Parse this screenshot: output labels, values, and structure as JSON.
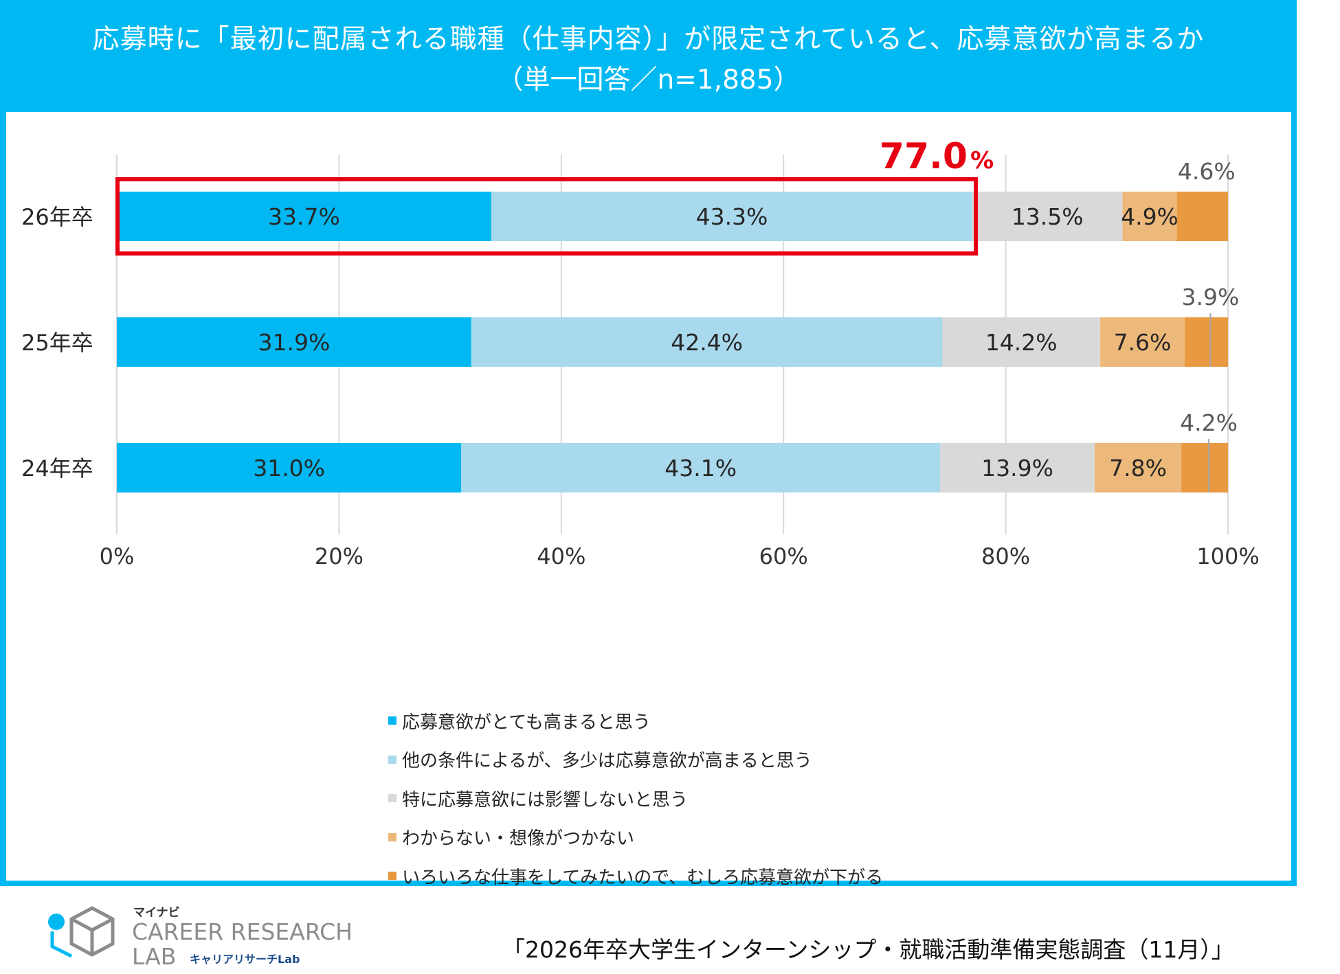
{
  "header": {
    "title_line1": "応募時に「最初に配属される職種（仕事内容）」が限定されていると、応募意欲が高まるか",
    "title_line2": "（単一回答／n=1,885）"
  },
  "colors": {
    "frame": "#01b9f2",
    "highlight": "#e60012"
  },
  "chart_data": {
    "type": "bar",
    "orientation": "horizontal",
    "stacked": true,
    "categories": [
      "26年卒",
      "25年卒",
      "24年卒"
    ],
    "series": [
      {
        "name": "応募意欲がとても高まると思う",
        "values": [
          33.7,
          31.9,
          31.0
        ],
        "labels": [
          "33.7%",
          "31.9%",
          "31.0%"
        ],
        "color": "#02b8f2"
      },
      {
        "name": "他の条件によるが、多少は応募意欲が高まると思う",
        "values": [
          43.3,
          42.4,
          43.1
        ],
        "labels": [
          "43.3%",
          "42.4%",
          "43.1%"
        ],
        "color": "#a9d9ec"
      },
      {
        "name": "特に応募意欲には影響しないと思う",
        "values": [
          13.5,
          14.2,
          13.9
        ],
        "labels": [
          "13.5%",
          "14.2%",
          "13.9%"
        ],
        "color": "#d9d9d9"
      },
      {
        "name": "わからない・想像がつかない",
        "values": [
          4.9,
          7.6,
          7.8
        ],
        "labels": [
          "4.9%",
          "7.6%",
          "7.8%"
        ],
        "color": "#edb97b"
      },
      {
        "name": "いろいろな仕事をしてみたいので、むしろ応募意欲が下がる",
        "values": [
          4.6,
          3.9,
          4.2
        ],
        "labels": [
          "4.6%",
          "3.9%",
          "4.2%"
        ],
        "color": "#e99a41"
      }
    ],
    "xlim": [
      0,
      100
    ],
    "ticks": [
      0,
      20,
      40,
      60,
      80,
      100
    ],
    "tick_labels": [
      "0%",
      "20%",
      "40%",
      "60%",
      "80%",
      "100%"
    ],
    "grid": true,
    "legend_position": "bottom",
    "highlight": {
      "category_index": 0,
      "series_span": [
        0,
        1
      ],
      "label": "77.0",
      "unit": "%"
    }
  },
  "logo": {
    "brand_small": "マイナビ",
    "line1": "CAREER RESEARCH",
    "line2": "LAB",
    "tagline": "キャリアリサーチLab"
  },
  "source_note": "「2026年卒大学生インターンシップ・就職活動準備実態調査（11月）」"
}
